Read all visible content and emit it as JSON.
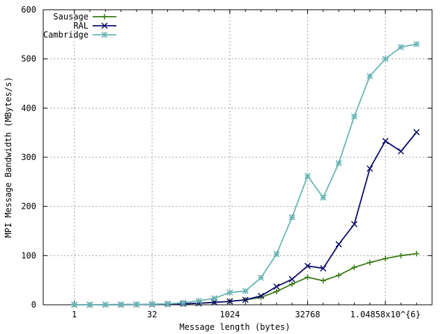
{
  "chart_data": {
    "type": "line",
    "title": "",
    "xlabel": "Message length (bytes)",
    "ylabel": "MPI Message Bandwidth (MBytes/s)",
    "x_scale": "log2",
    "xlim": [
      0.25,
      8388608
    ],
    "ylim": [
      0,
      600
    ],
    "grid": true,
    "legend_position": "top-left",
    "x_ticks": [
      {
        "value": 1,
        "label": "1"
      },
      {
        "value": 32,
        "label": "32"
      },
      {
        "value": 1024,
        "label": "1024"
      },
      {
        "value": 32768,
        "label": "32768"
      },
      {
        "value": 1048576,
        "label": "1.04858x10^{6}"
      }
    ],
    "y_ticks": [
      {
        "value": 0,
        "label": "0"
      },
      {
        "value": 100,
        "label": "100"
      },
      {
        "value": 200,
        "label": "200"
      },
      {
        "value": 300,
        "label": "300"
      },
      {
        "value": 400,
        "label": "400"
      },
      {
        "value": 500,
        "label": "500"
      },
      {
        "value": 600,
        "label": "600"
      }
    ],
    "x": [
      1,
      2,
      4,
      8,
      16,
      32,
      64,
      128,
      256,
      512,
      1024,
      2048,
      4096,
      8192,
      16384,
      32768,
      65536,
      131072,
      262144,
      524288,
      1048576,
      2097152,
      4194304
    ],
    "series": [
      {
        "name": "Sausage",
        "color": "#3a7a14",
        "marker": "plus",
        "values": [
          0.1,
          0.1,
          0.2,
          0.3,
          0.5,
          0.8,
          1.2,
          2,
          3,
          5,
          7,
          10,
          15,
          27,
          42,
          56,
          49,
          60,
          76,
          86,
          94,
          100,
          104
        ]
      },
      {
        "name": "RAL",
        "color": "#0a0a6a",
        "marker": "x",
        "values": [
          0.1,
          0.1,
          0.2,
          0.3,
          0.5,
          0.8,
          1.3,
          2,
          3,
          5,
          7,
          10,
          18,
          37,
          52,
          79,
          74,
          123,
          164,
          277,
          333,
          312,
          351
        ]
      },
      {
        "name": "Cambridge",
        "color": "#6ab4b4",
        "marker": "star",
        "values": [
          0.1,
          0.2,
          0.3,
          0.5,
          0.8,
          1.3,
          2,
          4,
          8,
          13,
          25,
          28,
          55,
          103,
          178,
          262,
          218,
          288,
          383,
          465,
          500,
          524,
          530
        ]
      }
    ]
  }
}
